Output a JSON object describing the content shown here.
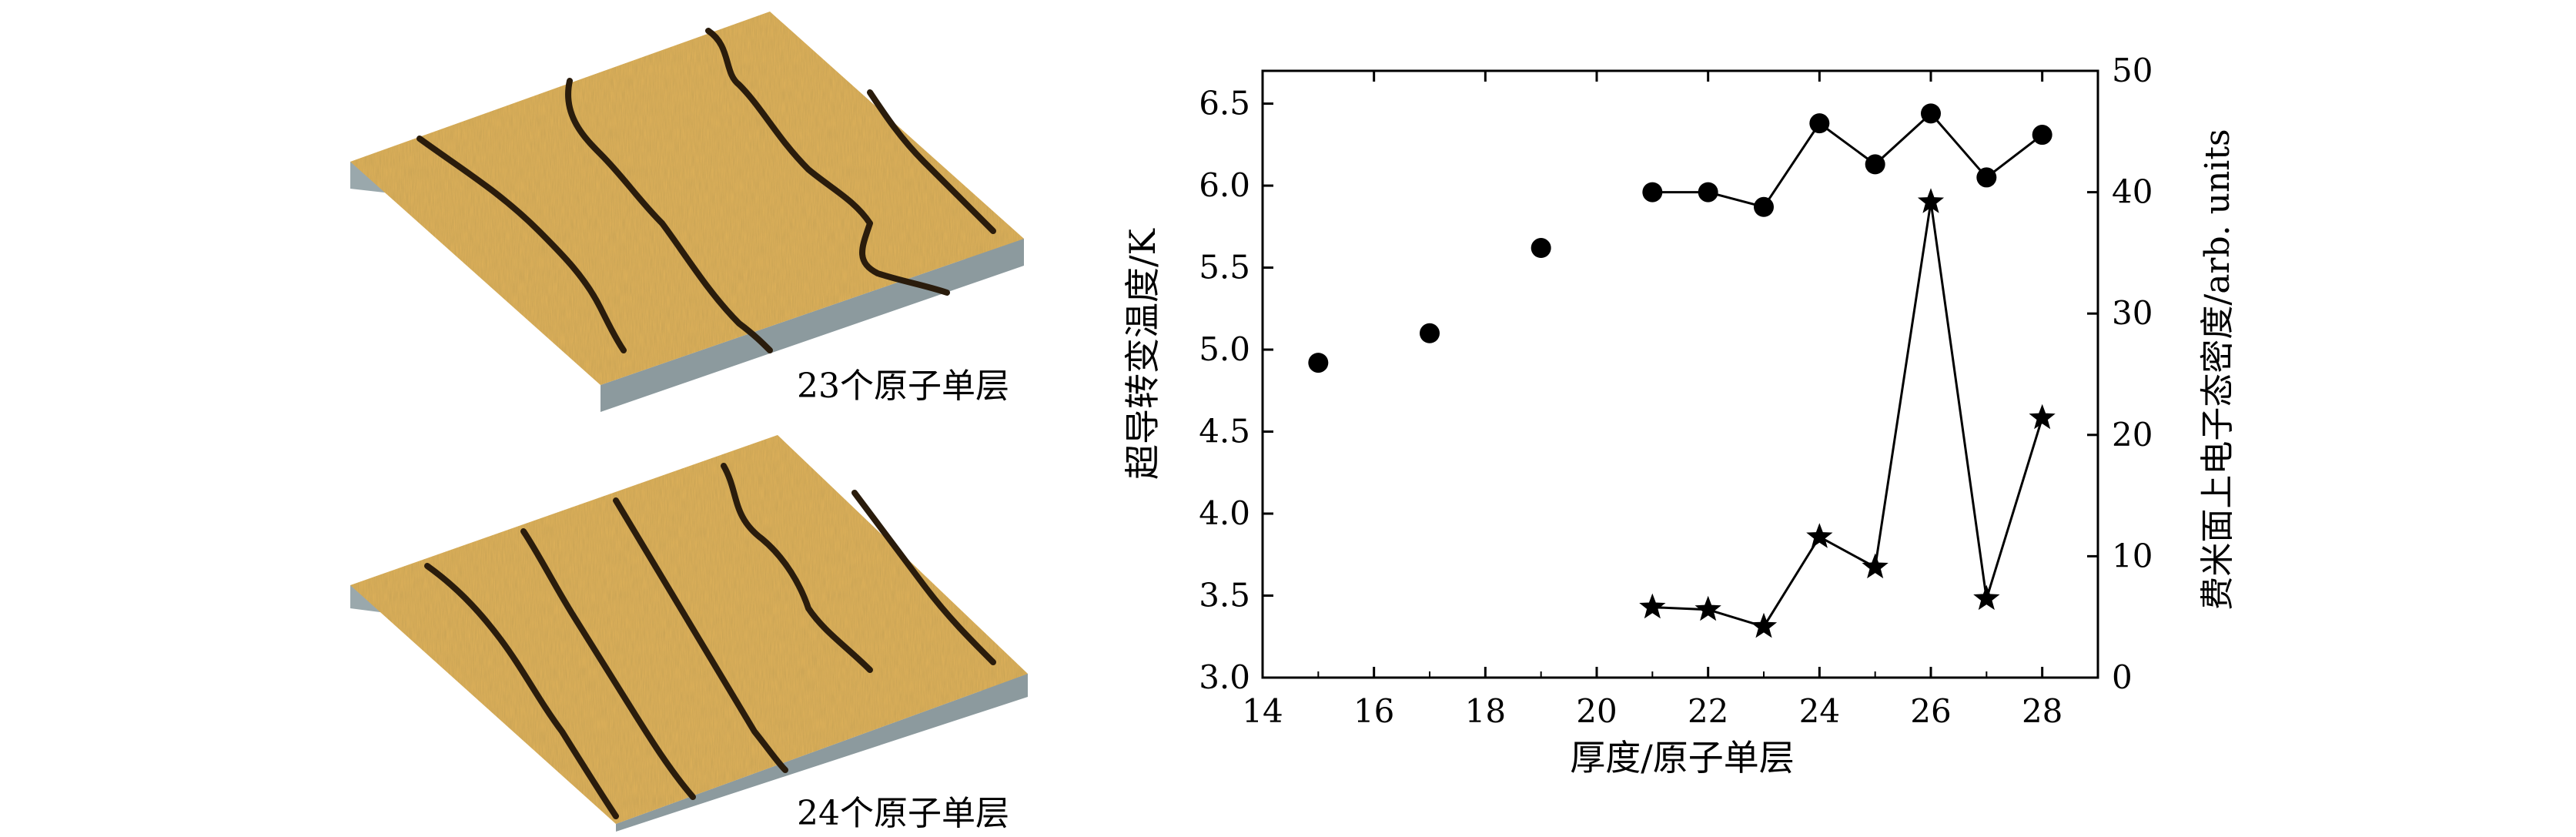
{
  "panels": [
    {
      "caption": "23个原子单层"
    },
    {
      "caption": "24个原子单层"
    }
  ],
  "colors": {
    "terrace": "#e0b25a",
    "terrace_light": "#f0cf86",
    "step_edge": "#2a1c0c",
    "side": "#9aa8ac",
    "series": "#000000"
  },
  "chart_data": {
    "type": "scatter",
    "xlabel": "厚度/原子单层",
    "ylabel": "超导转变温度/K",
    "ylabel_right": "费米面上电子态密度/arb. units",
    "xlim": [
      14,
      29
    ],
    "ylim": [
      3.0,
      6.7
    ],
    "ylim_right": [
      0,
      50
    ],
    "xticks": [
      14,
      16,
      18,
      20,
      22,
      24,
      26,
      28
    ],
    "yticks": [
      "3.0",
      "3.5",
      "4.0",
      "4.5",
      "5.0",
      "5.5",
      "6.0",
      "6.5"
    ],
    "yticks_right": [
      0,
      10,
      20,
      30,
      40,
      50
    ],
    "grid": false,
    "series": [
      {
        "axis": "left",
        "marker": "circle",
        "points": [
          {
            "x": 15,
            "y": 4.92
          },
          {
            "x": 17,
            "y": 5.1
          },
          {
            "x": 19,
            "y": 5.62
          },
          {
            "x": 21,
            "y": 5.96
          },
          {
            "x": 22,
            "y": 5.96
          },
          {
            "x": 23,
            "y": 5.87
          },
          {
            "x": 24,
            "y": 6.38
          },
          {
            "x": 25,
            "y": 6.13
          },
          {
            "x": 26,
            "y": 6.44
          },
          {
            "x": 27,
            "y": 6.05
          },
          {
            "x": 28,
            "y": 6.31
          }
        ],
        "line_from_x": 21
      },
      {
        "axis": "right",
        "marker": "star",
        "points": [
          {
            "x": 21,
            "y": 5.8
          },
          {
            "x": 22,
            "y": 5.6
          },
          {
            "x": 23,
            "y": 4.2
          },
          {
            "x": 24,
            "y": 11.6
          },
          {
            "x": 25,
            "y": 9.1
          },
          {
            "x": 26,
            "y": 39.2
          },
          {
            "x": 27,
            "y": 6.5
          },
          {
            "x": 28,
            "y": 21.4
          }
        ],
        "line_from_x": 21
      }
    ]
  }
}
